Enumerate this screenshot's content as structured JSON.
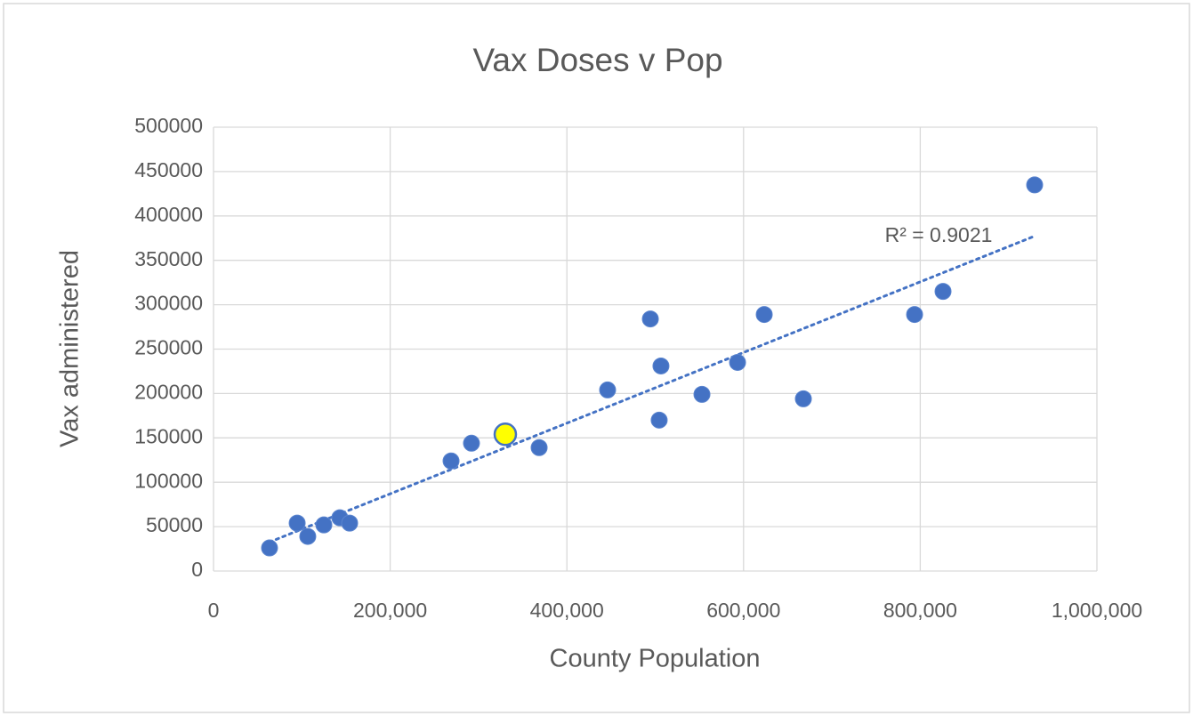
{
  "chart_data": {
    "type": "scatter",
    "title": "Vax Doses v Pop",
    "xlabel": "County Population",
    "ylabel": "Vax administered",
    "x": [
      63400,
      94700,
      106700,
      124900,
      143000,
      154100,
      268900,
      292000,
      330300,
      368600,
      446100,
      494500,
      506500,
      504500,
      552900,
      593200,
      623400,
      667700,
      793600,
      825800,
      929500
    ],
    "values": [
      26000,
      54000,
      39000,
      52000,
      60000,
      54000,
      124000,
      144000,
      154000,
      139000,
      204000,
      284000,
      231000,
      170000,
      199000,
      235000,
      289000,
      194000,
      289000,
      315000,
      435000
    ],
    "color": "#4472c4",
    "highlight": {
      "index": 8,
      "color": "#ffff00"
    },
    "trendline": {
      "kind": "linear",
      "label": "R² = 0.9021"
    },
    "xlim": [
      0,
      1000000
    ],
    "xticks": [
      0,
      {
        "value": 200000,
        "label": "200,000"
      },
      {
        "value": 400000,
        "label": "400,000"
      },
      {
        "value": 600000,
        "label": "600,000"
      },
      {
        "value": 800000,
        "label": "800,000"
      },
      {
        "value": 1000000,
        "label": "1,000,000"
      }
    ],
    "ylim": [
      0,
      500000
    ],
    "yticks": [
      0,
      50000,
      100000,
      150000,
      200000,
      250000,
      300000,
      350000,
      400000,
      450000,
      500000
    ],
    "grid": true
  }
}
